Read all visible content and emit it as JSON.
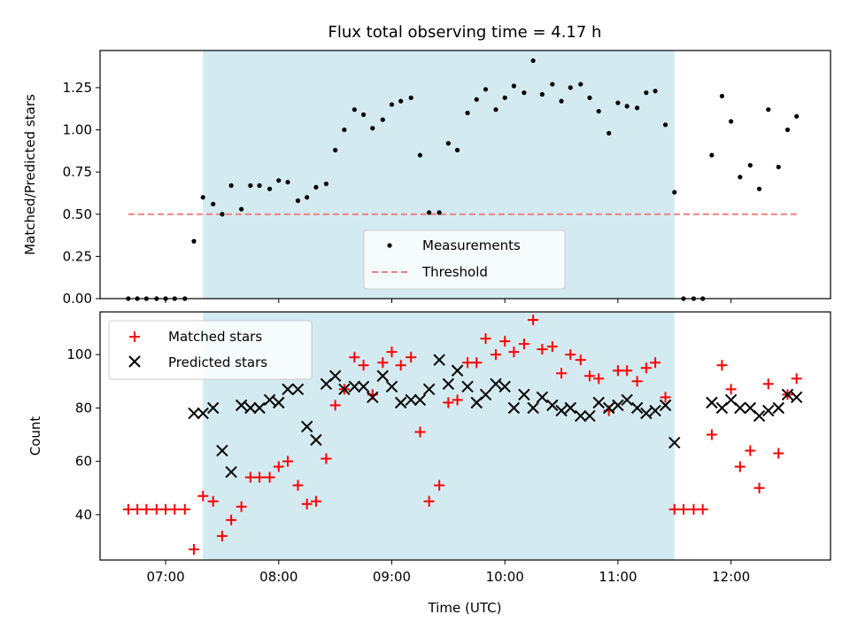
{
  "chart_data": [
    {
      "type": "scatter",
      "title": "Flux total observing time = 4.17 h",
      "xlabel": "",
      "ylabel": "Matched/Predicted stars",
      "x_unit": "hours (UTC)",
      "xlim": [
        6.42,
        12.88
      ],
      "ylim": [
        0.0,
        1.47
      ],
      "yticks": [
        0.0,
        0.25,
        0.5,
        0.75,
        1.0,
        1.25
      ],
      "ytick_labels": [
        "0.00",
        "0.25",
        "0.50",
        "0.75",
        "1.00",
        "1.25"
      ],
      "observing_window": {
        "start": 7.33,
        "end": 11.5,
        "color": "#d3eaf1"
      },
      "threshold": {
        "name": "Threshold",
        "value": 0.5,
        "x_range": [
          6.67,
          12.58
        ],
        "color": "#f08080",
        "style": "dashed"
      },
      "legend": {
        "position": "lower center",
        "entries": [
          "Measurements",
          "Threshold"
        ]
      },
      "series": [
        {
          "name": "Measurements",
          "marker": "dot",
          "color": "#000000",
          "points": [
            [
              6.67,
              0.0
            ],
            [
              6.75,
              0.0
            ],
            [
              6.83,
              0.0
            ],
            [
              6.92,
              0.0
            ],
            [
              7.0,
              0.0
            ],
            [
              7.08,
              0.0
            ],
            [
              7.17,
              0.0
            ],
            [
              7.25,
              0.34
            ],
            [
              7.33,
              0.6
            ],
            [
              7.42,
              0.56
            ],
            [
              7.5,
              0.5
            ],
            [
              7.58,
              0.67
            ],
            [
              7.67,
              0.53
            ],
            [
              7.75,
              0.67
            ],
            [
              7.83,
              0.67
            ],
            [
              7.92,
              0.65
            ],
            [
              8.0,
              0.7
            ],
            [
              8.08,
              0.69
            ],
            [
              8.17,
              0.58
            ],
            [
              8.25,
              0.6
            ],
            [
              8.33,
              0.66
            ],
            [
              8.42,
              0.68
            ],
            [
              8.5,
              0.88
            ],
            [
              8.58,
              1.0
            ],
            [
              8.67,
              1.12
            ],
            [
              8.75,
              1.09
            ],
            [
              8.83,
              1.01
            ],
            [
              8.92,
              1.06
            ],
            [
              9.0,
              1.15
            ],
            [
              9.08,
              1.17
            ],
            [
              9.17,
              1.19
            ],
            [
              9.25,
              0.85
            ],
            [
              9.33,
              0.51
            ],
            [
              9.42,
              0.51
            ],
            [
              9.5,
              0.92
            ],
            [
              9.58,
              0.88
            ],
            [
              9.67,
              1.1
            ],
            [
              9.75,
              1.18
            ],
            [
              9.83,
              1.24
            ],
            [
              9.92,
              1.12
            ],
            [
              10.0,
              1.19
            ],
            [
              10.08,
              1.26
            ],
            [
              10.17,
              1.22
            ],
            [
              10.25,
              1.41
            ],
            [
              10.33,
              1.21
            ],
            [
              10.42,
              1.27
            ],
            [
              10.5,
              1.17
            ],
            [
              10.58,
              1.25
            ],
            [
              10.67,
              1.27
            ],
            [
              10.75,
              1.19
            ],
            [
              10.83,
              1.11
            ],
            [
              10.92,
              0.98
            ],
            [
              11.0,
              1.16
            ],
            [
              11.08,
              1.14
            ],
            [
              11.17,
              1.13
            ],
            [
              11.25,
              1.22
            ],
            [
              11.33,
              1.23
            ],
            [
              11.42,
              1.03
            ],
            [
              11.5,
              0.63
            ],
            [
              11.58,
              0.0
            ],
            [
              11.67,
              0.0
            ],
            [
              11.75,
              0.0
            ],
            [
              11.83,
              0.85
            ],
            [
              11.92,
              1.2
            ],
            [
              12.0,
              1.05
            ],
            [
              12.08,
              0.72
            ],
            [
              12.17,
              0.79
            ],
            [
              12.25,
              0.65
            ],
            [
              12.33,
              1.12
            ],
            [
              12.42,
              0.78
            ],
            [
              12.5,
              1.0
            ],
            [
              12.58,
              1.08
            ]
          ]
        }
      ]
    },
    {
      "type": "scatter",
      "title": "",
      "xlabel": "Time (UTC)",
      "ylabel": "Count",
      "x_unit": "hours (UTC)",
      "xlim": [
        6.42,
        12.88
      ],
      "ylim": [
        23,
        116
      ],
      "xticks": [
        7,
        8,
        9,
        10,
        11,
        12
      ],
      "xtick_labels": [
        "07:00",
        "08:00",
        "09:00",
        "10:00",
        "11:00",
        "12:00"
      ],
      "yticks": [
        40,
        60,
        80,
        100
      ],
      "ytick_labels": [
        "40",
        "60",
        "80",
        "100"
      ],
      "observing_window": {
        "start": 7.33,
        "end": 11.5,
        "color": "#d3eaf1"
      },
      "legend": {
        "position": "upper left",
        "entries": [
          "Matched stars",
          "Predicted stars"
        ]
      },
      "series": [
        {
          "name": "Matched stars",
          "marker": "plus",
          "color": "#ff0000",
          "points": [
            [
              6.67,
              42
            ],
            [
              6.75,
              42
            ],
            [
              6.83,
              42
            ],
            [
              6.92,
              42
            ],
            [
              7.0,
              42
            ],
            [
              7.08,
              42
            ],
            [
              7.17,
              42
            ],
            [
              7.25,
              27
            ],
            [
              7.33,
              47
            ],
            [
              7.42,
              45
            ],
            [
              7.5,
              32
            ],
            [
              7.58,
              38
            ],
            [
              7.67,
              43
            ],
            [
              7.75,
              54
            ],
            [
              7.83,
              54
            ],
            [
              7.92,
              54
            ],
            [
              8.0,
              58
            ],
            [
              8.08,
              60
            ],
            [
              8.17,
              51
            ],
            [
              8.25,
              44
            ],
            [
              8.33,
              45
            ],
            [
              8.42,
              61
            ],
            [
              8.5,
              81
            ],
            [
              8.58,
              87
            ],
            [
              8.67,
              99
            ],
            [
              8.75,
              96
            ],
            [
              8.83,
              85
            ],
            [
              8.92,
              97
            ],
            [
              9.0,
              101
            ],
            [
              9.08,
              96
            ],
            [
              9.17,
              99
            ],
            [
              9.25,
              71
            ],
            [
              9.33,
              45
            ],
            [
              9.42,
              51
            ],
            [
              9.5,
              82
            ],
            [
              9.58,
              83
            ],
            [
              9.67,
              97
            ],
            [
              9.75,
              97
            ],
            [
              9.83,
              106
            ],
            [
              9.92,
              100
            ],
            [
              10.0,
              105
            ],
            [
              10.08,
              101
            ],
            [
              10.17,
              104
            ],
            [
              10.25,
              113
            ],
            [
              10.33,
              102
            ],
            [
              10.42,
              103
            ],
            [
              10.5,
              93
            ],
            [
              10.58,
              100
            ],
            [
              10.67,
              98
            ],
            [
              10.75,
              92
            ],
            [
              10.83,
              91
            ],
            [
              10.92,
              79
            ],
            [
              11.0,
              94
            ],
            [
              11.08,
              94
            ],
            [
              11.17,
              90
            ],
            [
              11.25,
              95
            ],
            [
              11.33,
              97
            ],
            [
              11.42,
              84
            ],
            [
              11.5,
              42
            ],
            [
              11.58,
              42
            ],
            [
              11.67,
              42
            ],
            [
              11.75,
              42
            ],
            [
              11.83,
              70
            ],
            [
              11.92,
              96
            ],
            [
              12.0,
              87
            ],
            [
              12.08,
              58
            ],
            [
              12.17,
              64
            ],
            [
              12.25,
              50
            ],
            [
              12.33,
              89
            ],
            [
              12.42,
              63
            ],
            [
              12.5,
              85
            ],
            [
              12.58,
              91
            ]
          ]
        },
        {
          "name": "Predicted stars",
          "marker": "x",
          "color": "#000000",
          "points": [
            [
              7.25,
              78
            ],
            [
              7.33,
              78
            ],
            [
              7.42,
              80
            ],
            [
              7.5,
              64
            ],
            [
              7.58,
              56
            ],
            [
              7.67,
              81
            ],
            [
              7.75,
              80
            ],
            [
              7.83,
              80
            ],
            [
              7.92,
              83
            ],
            [
              8.0,
              82
            ],
            [
              8.08,
              87
            ],
            [
              8.17,
              87
            ],
            [
              8.25,
              73
            ],
            [
              8.33,
              68
            ],
            [
              8.42,
              89
            ],
            [
              8.5,
              92
            ],
            [
              8.58,
              87
            ],
            [
              8.67,
              88
            ],
            [
              8.75,
              88
            ],
            [
              8.83,
              84
            ],
            [
              8.92,
              92
            ],
            [
              9.0,
              88
            ],
            [
              9.08,
              82
            ],
            [
              9.17,
              83
            ],
            [
              9.25,
              83
            ],
            [
              9.33,
              87
            ],
            [
              9.42,
              98
            ],
            [
              9.5,
              89
            ],
            [
              9.58,
              94
            ],
            [
              9.67,
              88
            ],
            [
              9.75,
              82
            ],
            [
              9.83,
              85
            ],
            [
              9.92,
              89
            ],
            [
              10.0,
              88
            ],
            [
              10.08,
              80
            ],
            [
              10.17,
              85
            ],
            [
              10.25,
              80
            ],
            [
              10.33,
              84
            ],
            [
              10.42,
              81
            ],
            [
              10.5,
              79
            ],
            [
              10.58,
              80
            ],
            [
              10.67,
              77
            ],
            [
              10.75,
              77
            ],
            [
              10.83,
              82
            ],
            [
              10.92,
              80
            ],
            [
              11.0,
              81
            ],
            [
              11.08,
              83
            ],
            [
              11.17,
              80
            ],
            [
              11.25,
              78
            ],
            [
              11.33,
              79
            ],
            [
              11.42,
              81
            ],
            [
              11.5,
              67
            ],
            [
              11.83,
              82
            ],
            [
              11.92,
              80
            ],
            [
              12.0,
              83
            ],
            [
              12.08,
              80
            ],
            [
              12.17,
              80
            ],
            [
              12.25,
              77
            ],
            [
              12.33,
              79
            ],
            [
              12.42,
              80
            ],
            [
              12.5,
              85
            ],
            [
              12.58,
              84
            ]
          ]
        }
      ]
    }
  ]
}
